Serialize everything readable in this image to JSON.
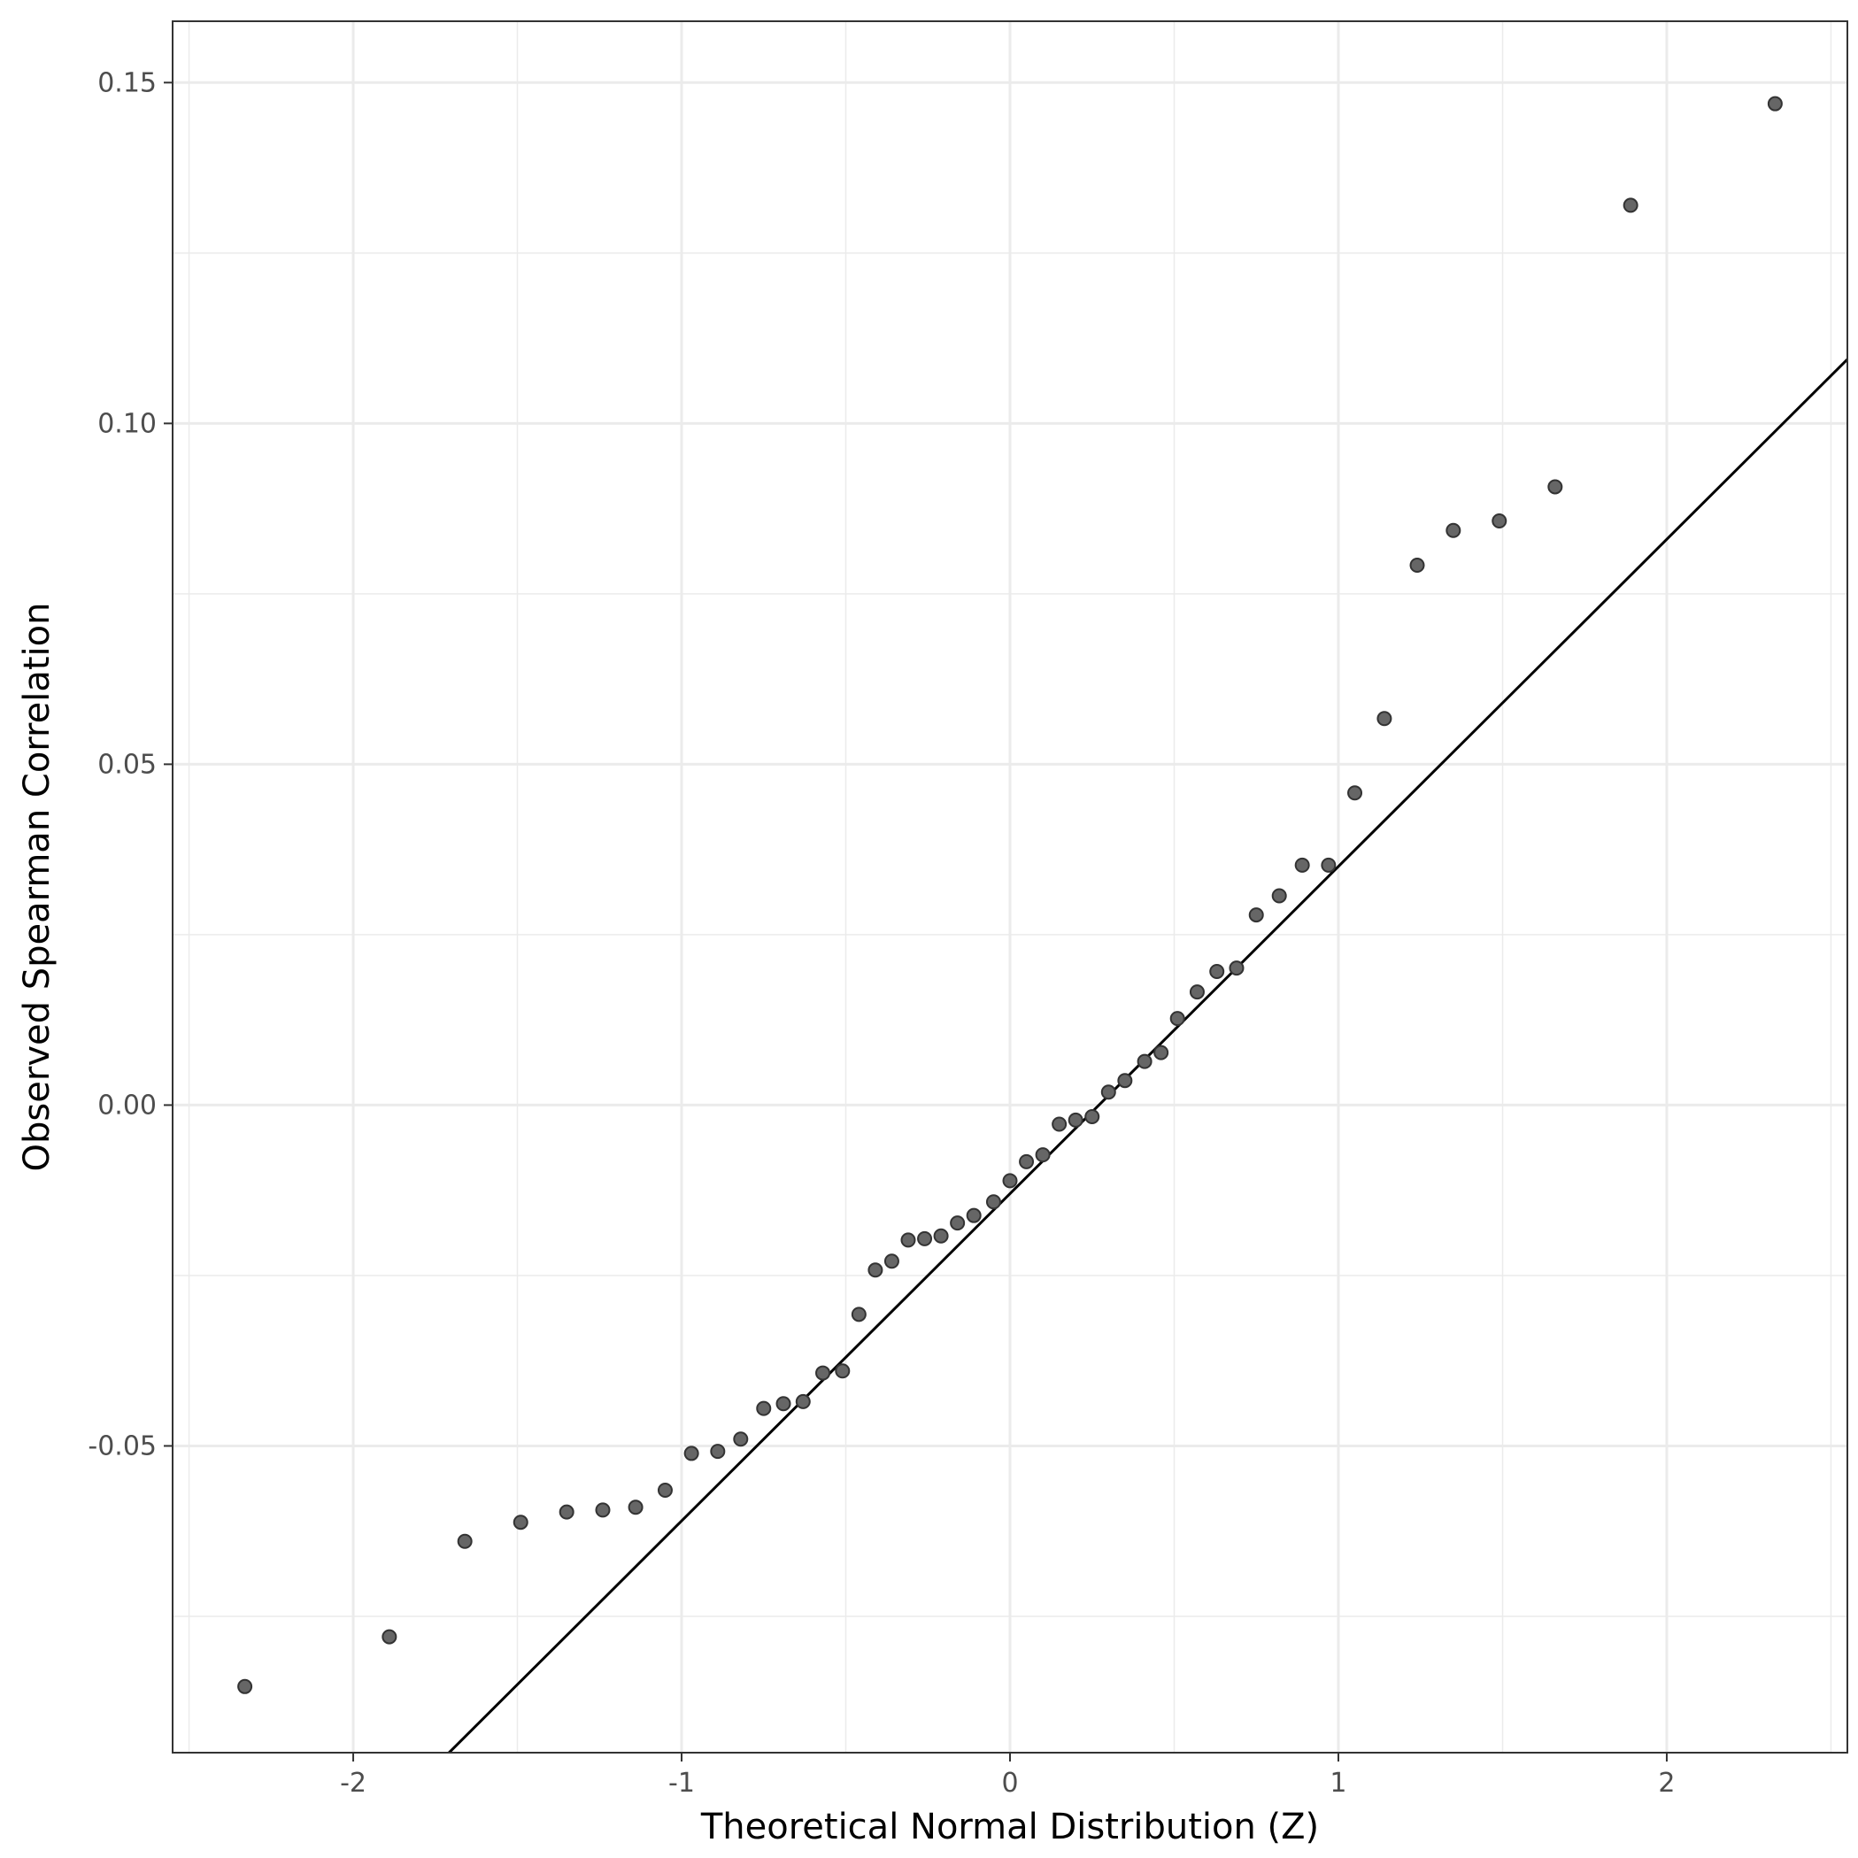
{
  "chart_data": {
    "type": "scatter",
    "title": "",
    "xlabel": "Theoretical Normal Distribution (Z)",
    "ylabel": "Observed Spearman Correlation",
    "xlim": [
      -2.55,
      2.55
    ],
    "ylim": [
      -0.095,
      0.159
    ],
    "x_ticks": [
      -2,
      -1,
      0,
      1,
      2
    ],
    "x_tick_labels": [
      "-2",
      "-1",
      "0",
      "1",
      "2"
    ],
    "y_ticks": [
      -0.05,
      0.0,
      0.05,
      0.1,
      0.15
    ],
    "y_tick_labels": [
      "-0.05",
      "0.00",
      "0.05",
      "0.10",
      "0.15"
    ],
    "grid": true,
    "background": "#ffffff",
    "grid_color": "#ebebeb",
    "point_fill": "#666666",
    "point_stroke": "#333333",
    "line_color": "#000000",
    "reference_line": {
      "intercept": -0.013,
      "slope": 0.048
    },
    "points": {
      "x": [
        -2.33,
        -1.89,
        -1.66,
        -1.49,
        -1.35,
        -1.24,
        -1.14,
        -1.05,
        -0.97,
        -0.89,
        -0.82,
        -0.75,
        -0.69,
        -0.63,
        -0.57,
        -0.51,
        -0.46,
        -0.41,
        -0.36,
        -0.31,
        -0.26,
        -0.21,
        -0.16,
        -0.11,
        -0.05,
        0.0,
        0.05,
        0.1,
        0.15,
        0.2,
        0.25,
        0.3,
        0.35,
        0.41,
        0.46,
        0.51,
        0.57,
        0.63,
        0.69,
        0.75,
        0.82,
        0.89,
        0.97,
        1.05,
        1.14,
        1.24,
        1.35,
        1.49,
        1.66,
        1.89,
        2.33
      ],
      "y": [
        -0.0853,
        -0.078,
        -0.064,
        -0.0612,
        -0.0597,
        -0.0594,
        -0.059,
        -0.0565,
        -0.0511,
        -0.0508,
        -0.049,
        -0.0445,
        -0.0438,
        -0.0435,
        -0.0393,
        -0.039,
        -0.0307,
        -0.0242,
        -0.0229,
        -0.0198,
        -0.0196,
        -0.0192,
        -0.0173,
        -0.0162,
        -0.0142,
        -0.0111,
        -0.0083,
        -0.0073,
        -0.0028,
        -0.0022,
        -0.0017,
        0.0019,
        0.0036,
        0.0064,
        0.0077,
        0.0127,
        0.0166,
        0.0196,
        0.0201,
        0.0279,
        0.0307,
        0.0352,
        0.0352,
        0.0458,
        0.0567,
        0.0792,
        0.0843,
        0.0857,
        0.0907,
        0.132,
        0.1469
      ]
    }
  }
}
